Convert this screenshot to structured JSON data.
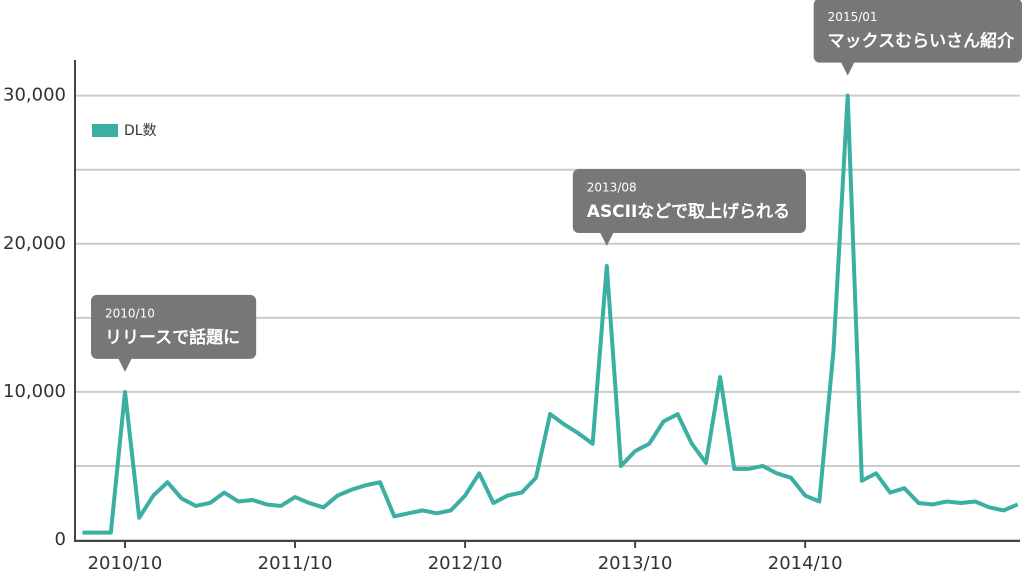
{
  "chart_data": {
    "type": "line",
    "categories": [
      null,
      null,
      null,
      "2010/10",
      null,
      null,
      null,
      null,
      null,
      null,
      null,
      null,
      null,
      null,
      null,
      "2011/10",
      null,
      null,
      null,
      null,
      null,
      null,
      null,
      null,
      null,
      null,
      null,
      "2012/10",
      null,
      null,
      null,
      null,
      null,
      null,
      null,
      null,
      null,
      null,
      null,
      "2013/10",
      null,
      null,
      null,
      null,
      null,
      null,
      null,
      null,
      null,
      null,
      null,
      "2014/10",
      null,
      null,
      null,
      null,
      null,
      null,
      null,
      null,
      null,
      null,
      null,
      null,
      null,
      null,
      null
    ],
    "series": [
      {
        "name": "DL数",
        "color": "#3aafa2",
        "values": [
          500,
          500,
          500,
          10000,
          1500,
          3000,
          3900,
          2800,
          2300,
          2500,
          3200,
          2600,
          2700,
          2400,
          2300,
          2900,
          2500,
          2200,
          3000,
          3400,
          3700,
          3900,
          1600,
          1800,
          2000,
          1800,
          2000,
          3000,
          4500,
          2500,
          3000,
          3200,
          4200,
          8500,
          7800,
          7200,
          6500,
          18500,
          5000,
          6000,
          6500,
          8000,
          8500,
          6500,
          5200,
          11000,
          4800,
          4800,
          5000,
          4500,
          4200,
          3000,
          2600,
          12800,
          30000,
          4000,
          4500,
          3200,
          3500,
          2500,
          2400,
          2600,
          2500,
          2600,
          2200,
          2000,
          2400
        ]
      }
    ],
    "ylim": [
      0,
      32000
    ],
    "yticks": [
      0,
      {
        "value": 10000,
        "label": "10,000"
      },
      {
        "value": 20000,
        "label": "20,000"
      },
      {
        "value": 30000,
        "label": "30,000"
      }
    ],
    "minor_gridlines": [
      5000,
      15000,
      25000
    ],
    "grid": true,
    "legend": "top-left",
    "annotations": [
      {
        "index": 3,
        "date": "2010/10",
        "text": "リリースで話題に"
      },
      {
        "index": 37,
        "date": "2013/08",
        "text": "ASCIIなどで取上げられる"
      },
      {
        "index": 54,
        "date": "2015/01",
        "text": "マックスむらいさん紹介"
      }
    ]
  }
}
